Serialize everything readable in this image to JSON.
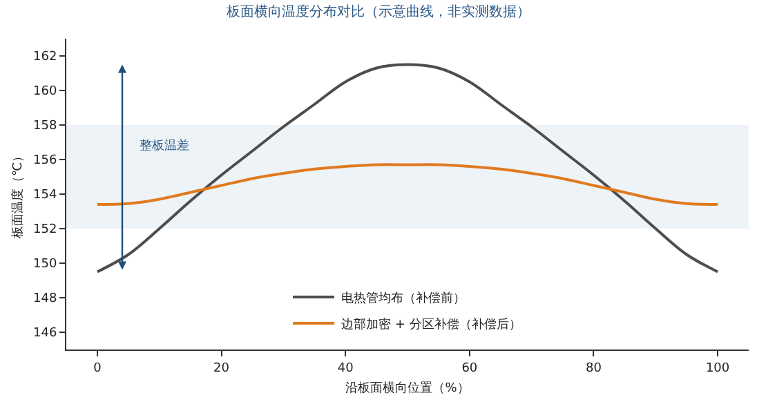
{
  "chart_data": {
    "type": "line",
    "title": "板面横向温度分布对比（示意曲线，非实测数据）",
    "xlabel": "沿板面横向位置（%）",
    "ylabel": "板面温度（℃）",
    "x": [
      0,
      5,
      10,
      15,
      20,
      25,
      30,
      35,
      40,
      45,
      50,
      55,
      60,
      65,
      70,
      75,
      80,
      85,
      90,
      95,
      100
    ],
    "series": [
      {
        "name": "电热管均布（补偿前）",
        "color": "#4d4d4d",
        "values": [
          149.5,
          150.5,
          152.0,
          153.6,
          155.1,
          156.5,
          157.9,
          159.2,
          160.5,
          161.3,
          161.5,
          161.3,
          160.5,
          159.2,
          157.9,
          156.5,
          155.1,
          153.6,
          152.0,
          150.5,
          149.5
        ]
      },
      {
        "name": "边部加密 + 分区补偿（补偿后）",
        "color": "#e07a1f",
        "values": [
          153.4,
          153.45,
          153.7,
          154.1,
          154.5,
          154.9,
          155.2,
          155.45,
          155.6,
          155.7,
          155.7,
          155.7,
          155.6,
          155.45,
          155.2,
          154.9,
          154.5,
          154.1,
          153.7,
          153.45,
          153.4
        ]
      }
    ],
    "xlim": [
      -5,
      105
    ],
    "xticks": [
      0,
      20,
      40,
      60,
      80,
      100
    ],
    "ylim": [
      145,
      163
    ],
    "yticks": [
      146,
      148,
      150,
      152,
      154,
      156,
      158,
      160,
      162
    ],
    "bands": [
      {
        "axis": "y",
        "from": 152,
        "to": 158,
        "color": "#eef3f8"
      }
    ],
    "annotations": [
      "整板温差"
    ],
    "grid": false,
    "legend": "bottom",
    "marker": "none",
    "line_style": "solid"
  }
}
